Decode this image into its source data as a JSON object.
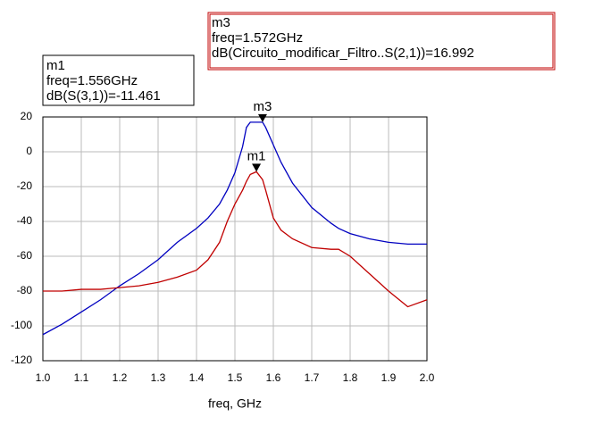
{
  "chart_data": {
    "type": "line",
    "x_label": "freq, GHz",
    "x": [
      1.0,
      1.05,
      1.1,
      1.15,
      1.2,
      1.25,
      1.3,
      1.35,
      1.4,
      1.43,
      1.46,
      1.48,
      1.5,
      1.52,
      1.53,
      1.54,
      1.556,
      1.572,
      1.58,
      1.6,
      1.62,
      1.65,
      1.7,
      1.75,
      1.77,
      1.8,
      1.85,
      1.9,
      1.95,
      2.0
    ],
    "series": [
      {
        "color": "#0000c0",
        "values": [
          -105,
          -99,
          -92,
          -85,
          -77,
          -70,
          -62,
          -52,
          -44,
          -38,
          -30,
          -22,
          -12,
          3,
          14,
          17,
          17,
          16.992,
          14,
          4,
          -6,
          -18,
          -32,
          -41,
          -44,
          -47,
          -50,
          -52,
          -53,
          -53
        ]
      },
      {
        "color": "#c00000",
        "values": [
          -80,
          -80,
          -79,
          -79,
          -78,
          -77,
          -75,
          -72,
          -68,
          -62,
          -52,
          -40,
          -30,
          -22,
          -17,
          -13,
          -11.461,
          -16,
          -22,
          -38,
          -45,
          -50,
          -55,
          -56,
          -56,
          -60,
          -70,
          -80,
          -89,
          -85
        ]
      }
    ],
    "xlim": [
      1.0,
      2.0
    ],
    "ylim": [
      -120,
      20
    ],
    "xticks": [
      {
        "value": 1.0,
        "label": "1.0"
      },
      1.1,
      1.2,
      1.3,
      1.4,
      1.5,
      1.6,
      1.7,
      1.8,
      1.9,
      {
        "value": 2.0,
        "label": "2.0"
      }
    ],
    "yticks": [
      20,
      0,
      -20,
      -40,
      -60,
      -80,
      -100,
      -120
    ],
    "grid": true,
    "markers": [
      {
        "name": "m1",
        "lines": [
          "m1",
          "freq=1.556GHz",
          "dB(S(3,1))=-11.461"
        ],
        "x": 1.556,
        "y": -11.461,
        "border": "#000000"
      },
      {
        "name": "m3",
        "lines": [
          "m3",
          "freq=1.572GHz",
          "dB(Circuito_modificar_Filtro..S(2,1))=16.992"
        ],
        "x": 1.572,
        "y": 16.992,
        "border": "#c00000"
      }
    ]
  }
}
